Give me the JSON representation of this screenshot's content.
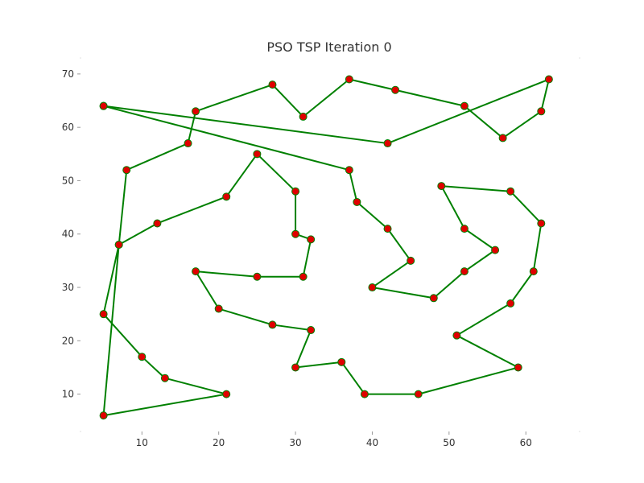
{
  "chart_data": {
    "type": "line",
    "title": "PSO TSP Iteration 0",
    "xlabel": "",
    "ylabel": "",
    "xlim": [
      2,
      67
    ],
    "ylim": [
      3,
      73
    ],
    "xticks": [
      10,
      20,
      30,
      40,
      50,
      60
    ],
    "yticks": [
      10,
      20,
      30,
      40,
      50,
      60,
      70
    ],
    "grid": false,
    "colors": {
      "route": "#008000",
      "city": "#e00000",
      "tick": "#333333"
    },
    "route": [
      [
        5,
        64
      ],
      [
        37,
        52
      ],
      [
        38,
        46
      ],
      [
        42,
        41
      ],
      [
        45,
        35
      ],
      [
        40,
        30
      ],
      [
        48,
        28
      ],
      [
        52,
        33
      ],
      [
        56,
        37
      ],
      [
        52,
        41
      ],
      [
        49,
        49
      ],
      [
        58,
        48
      ],
      [
        62,
        42
      ],
      [
        61,
        33
      ],
      [
        58,
        27
      ],
      [
        51,
        21
      ],
      [
        59,
        15
      ],
      [
        46,
        10
      ],
      [
        39,
        10
      ],
      [
        36,
        16
      ],
      [
        30,
        15
      ],
      [
        32,
        22
      ],
      [
        27,
        23
      ],
      [
        20,
        26
      ],
      [
        17,
        33
      ],
      [
        25,
        32
      ],
      [
        31,
        32
      ],
      [
        32,
        39
      ],
      [
        30,
        40
      ],
      [
        30,
        48
      ],
      [
        25,
        55
      ],
      [
        21,
        47
      ],
      [
        12,
        42
      ],
      [
        7,
        38
      ],
      [
        5,
        25
      ],
      [
        10,
        17
      ],
      [
        13,
        13
      ],
      [
        21,
        10
      ],
      [
        5,
        6
      ],
      [
        7,
        38
      ],
      [
        8,
        52
      ],
      [
        16,
        57
      ],
      [
        17,
        63
      ],
      [
        27,
        68
      ],
      [
        31,
        62
      ],
      [
        37,
        69
      ],
      [
        43,
        67
      ],
      [
        52,
        64
      ],
      [
        57,
        58
      ],
      [
        62,
        63
      ],
      [
        63,
        69
      ],
      [
        42,
        57
      ],
      [
        5,
        64
      ]
    ]
  }
}
